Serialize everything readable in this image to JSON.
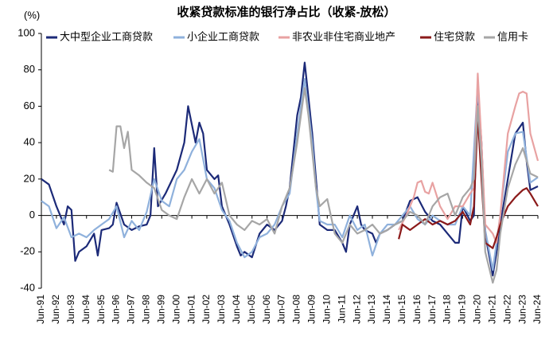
{
  "chart_data": {
    "type": "line",
    "title": "收紧贷款标准的银行净占比（收紧-放松）",
    "y_unit": "(%)",
    "xlim": [
      1991.5,
      2024.5
    ],
    "ylim": [
      -40,
      100
    ],
    "yticks": [
      -40,
      -20,
      0,
      20,
      40,
      60,
      80,
      100
    ],
    "xticks": [
      {
        "value": 1991.5,
        "label": "Jun-91"
      },
      {
        "value": 1992.5,
        "label": "Jun-92"
      },
      {
        "value": 1993.5,
        "label": "Jun-93"
      },
      {
        "value": 1994.5,
        "label": "Jun-94"
      },
      {
        "value": 1995.5,
        "label": "Jun-95"
      },
      {
        "value": 1996.5,
        "label": "Jun-96"
      },
      {
        "value": 1997.5,
        "label": "Jun-97"
      },
      {
        "value": 1998.5,
        "label": "Jun-98"
      },
      {
        "value": 1999.5,
        "label": "Jun-99"
      },
      {
        "value": 2000.5,
        "label": "Jun-00"
      },
      {
        "value": 2001.5,
        "label": "Jun-01"
      },
      {
        "value": 2002.5,
        "label": "Jun-02"
      },
      {
        "value": 2003.5,
        "label": "Jun-03"
      },
      {
        "value": 2004.5,
        "label": "Jun-04"
      },
      {
        "value": 2005.5,
        "label": "Jun-05"
      },
      {
        "value": 2006.5,
        "label": "Jun-06"
      },
      {
        "value": 2007.5,
        "label": "Jun-07"
      },
      {
        "value": 2008.5,
        "label": "Jun-08"
      },
      {
        "value": 2009.5,
        "label": "Jun-09"
      },
      {
        "value": 2010.5,
        "label": "Jun-10"
      },
      {
        "value": 2011.5,
        "label": "Jun-11"
      },
      {
        "value": 2012.5,
        "label": "Jun-12"
      },
      {
        "value": 2013.5,
        "label": "Jun-13"
      },
      {
        "value": 2014.5,
        "label": "Jun-14"
      },
      {
        "value": 2015.5,
        "label": "Jun-15"
      },
      {
        "value": 2016.5,
        "label": "Jun-16"
      },
      {
        "value": 2017.5,
        "label": "Jun-17"
      },
      {
        "value": 2018.5,
        "label": "Jun-18"
      },
      {
        "value": 2019.5,
        "label": "Jun-19"
      },
      {
        "value": 2020.5,
        "label": "Jun-20"
      },
      {
        "value": 2021.5,
        "label": "Jun-21"
      },
      {
        "value": 2022.5,
        "label": "Jun-22"
      },
      {
        "value": 2023.5,
        "label": "Jun-23"
      },
      {
        "value": 2024.5,
        "label": "Jun-24"
      }
    ],
    "series": [
      {
        "name": "大中型企业工商贷款",
        "color": "#1c2a78",
        "x": [
          1991.5,
          1992,
          1992.5,
          1993,
          1993.25,
          1993.5,
          1993.75,
          1994,
          1994.5,
          1995,
          1995.25,
          1995.5,
          1996,
          1996.25,
          1996.5,
          1997,
          1997.5,
          1998,
          1998.5,
          1998.75,
          1999,
          1999.25,
          1999.75,
          2000.5,
          2001,
          2001.25,
          2001.5,
          2001.75,
          2002,
          2002.25,
          2002.5,
          2003,
          2003.25,
          2003.5,
          2004,
          2004.5,
          2004.75,
          2005,
          2005.5,
          2006,
          2006.5,
          2007,
          2007.5,
          2007.75,
          2008,
          2008.5,
          2008.75,
          2009,
          2009.25,
          2009.5,
          2009.75,
          2010,
          2010.5,
          2011,
          2011.5,
          2011.75,
          2012,
          2012.5,
          2012.75,
          2013,
          2013.5,
          2013.75,
          2014,
          2014.5,
          2015,
          2015.5,
          2016,
          2016.5,
          2017,
          2017.5,
          2018,
          2018.5,
          2019,
          2019.25,
          2019.5,
          2020,
          2020.25,
          2020.5,
          2020.75,
          2021,
          2021.5,
          2021.75,
          2022,
          2022.5,
          2023,
          2023.5,
          2023.75,
          2024,
          2024.5
        ],
        "values": [
          20,
          17,
          5,
          -5,
          5,
          3,
          -25,
          -20,
          -17,
          -10,
          -22,
          -8,
          -7,
          -5,
          7,
          -5,
          -8,
          -6,
          -5,
          0,
          37,
          5,
          12,
          25,
          40,
          60,
          50,
          40,
          51,
          45,
          25,
          20,
          22,
          5,
          -5,
          -17,
          -22,
          -20,
          -23,
          -10,
          -5,
          -8,
          -3,
          5,
          15,
          55,
          65,
          84,
          65,
          45,
          20,
          -5,
          -8,
          -8,
          -15,
          -20,
          -5,
          5,
          -5,
          -8,
          -10,
          -15,
          -10,
          -8,
          -5,
          -3,
          8,
          10,
          2,
          -3,
          -5,
          -10,
          -15,
          -15,
          5,
          -3,
          0,
          70,
          40,
          -10,
          -33,
          -20,
          -5,
          20,
          45,
          51,
          30,
          14,
          16
        ]
      },
      {
        "name": "小企业工商贷款",
        "color": "#8fb1dc",
        "x": [
          1991.5,
          1992,
          1992.5,
          1993,
          1993.5,
          1994,
          1994.5,
          1995,
          1995.5,
          1996,
          1996.5,
          1997,
          1997.5,
          1998,
          1998.5,
          1999,
          1999.5,
          2000,
          2000.5,
          2001,
          2001.5,
          2002,
          2002.5,
          2003,
          2003.5,
          2004,
          2004.5,
          2005,
          2005.5,
          2006,
          2006.5,
          2007,
          2007.5,
          2008,
          2008.5,
          2009,
          2009.5,
          2009.75,
          2010,
          2010.5,
          2011,
          2011.5,
          2012,
          2012.5,
          2013,
          2013.5,
          2014,
          2014.5,
          2015,
          2015.5,
          2016,
          2016.5,
          2017,
          2017.5,
          2018,
          2018.5,
          2019,
          2019.5,
          2020,
          2020.5,
          2020.75,
          2021,
          2021.5,
          2021.75,
          2022,
          2022.5,
          2023,
          2023.5,
          2024,
          2024.5
        ],
        "values": [
          8,
          5,
          -7,
          -1,
          -12,
          -10,
          -12,
          -8,
          -5,
          -2,
          5,
          -12,
          -3,
          -8,
          2,
          20,
          8,
          5,
          20,
          25,
          35,
          42,
          20,
          15,
          3,
          -3,
          -15,
          -23,
          -20,
          -12,
          -10,
          -5,
          5,
          12,
          45,
          75,
          40,
          15,
          -3,
          -5,
          -5,
          -12,
          0,
          -8,
          -5,
          -22,
          -10,
          -5,
          -5,
          0,
          5,
          -2,
          -5,
          0,
          -3,
          -5,
          -5,
          5,
          0,
          72,
          35,
          -8,
          -30,
          -15,
          0,
          35,
          45,
          46,
          18,
          21
        ]
      },
      {
        "name": "非农业非住宅商业地产",
        "color": "#e8a2a2",
        "x": [
          2015.25,
          2015.75,
          2016.25,
          2016.5,
          2016.75,
          2017,
          2017.25,
          2017.5,
          2018,
          2018.5,
          2019,
          2019.5,
          2020,
          2020.25,
          2020.5,
          2020.75,
          2021,
          2021.5,
          2021.75,
          2022,
          2022.5,
          2023,
          2023.25,
          2023.5,
          2023.75,
          2024,
          2024.5
        ],
        "values": [
          -8,
          0,
          10,
          18,
          19,
          13,
          12,
          18,
          5,
          -2,
          5,
          5,
          12,
          15,
          78,
          40,
          -5,
          -10,
          -15,
          0,
          45,
          60,
          67,
          68,
          67,
          45,
          30
        ]
      },
      {
        "name": "住宅贷款",
        "color": "#8b1a1a",
        "x": [
          2015.25,
          2015.5,
          2016,
          2016.5,
          2017,
          2017.5,
          2018,
          2018.5,
          2019,
          2019.5,
          2020,
          2020.25,
          2020.5,
          2020.75,
          2021,
          2021.5,
          2021.75,
          2022,
          2022.5,
          2023,
          2023.5,
          2023.75,
          2024,
          2024.5
        ],
        "values": [
          -13,
          -5,
          -8,
          -5,
          -2,
          -5,
          -3,
          -5,
          -3,
          2,
          -5,
          5,
          55,
          20,
          -15,
          -18,
          -12,
          -5,
          5,
          10,
          14,
          15,
          12,
          5
        ]
      },
      {
        "name": "信用卡",
        "color": "#a6a6a6",
        "x": [
          1996,
          1996.25,
          1996.5,
          1996.75,
          1997,
          1997.25,
          1997.5,
          1998,
          1998.5,
          1999,
          1999.5,
          2000,
          2000.5,
          2001,
          2001.5,
          2002,
          2002.5,
          2003,
          2003.5,
          2004,
          2004.5,
          2005,
          2005.5,
          2006,
          2006.5,
          2007,
          2007.5,
          2008,
          2008.5,
          2009,
          2009.25,
          2009.5,
          2009.75,
          2010,
          2010.5,
          2011,
          2011.5,
          2012,
          2012.5,
          2013,
          2013.5,
          2014,
          2014.5,
          2015,
          2015.5,
          2016,
          2016.5,
          2017,
          2017.5,
          2018,
          2018.5,
          2019,
          2019.5,
          2020,
          2020.25,
          2020.5,
          2020.75,
          2021,
          2021.5,
          2021.75,
          2022,
          2022.5,
          2023,
          2023.5,
          2024,
          2024.5
        ],
        "values": [
          25,
          24,
          49,
          49,
          37,
          46,
          25,
          22,
          18,
          15,
          3,
          0,
          -2,
          10,
          20,
          12,
          20,
          12,
          18,
          0,
          -5,
          -8,
          -3,
          -5,
          -2,
          -10,
          5,
          15,
          40,
          70,
          55,
          35,
          15,
          5,
          9,
          -10,
          -15,
          -5,
          -10,
          -8,
          -5,
          -10,
          -8,
          -5,
          -3,
          2,
          0,
          -5,
          5,
          10,
          12,
          0,
          10,
          15,
          20,
          60,
          30,
          -20,
          -37,
          -30,
          -10,
          15,
          28,
          37,
          23,
          21
        ]
      }
    ]
  }
}
